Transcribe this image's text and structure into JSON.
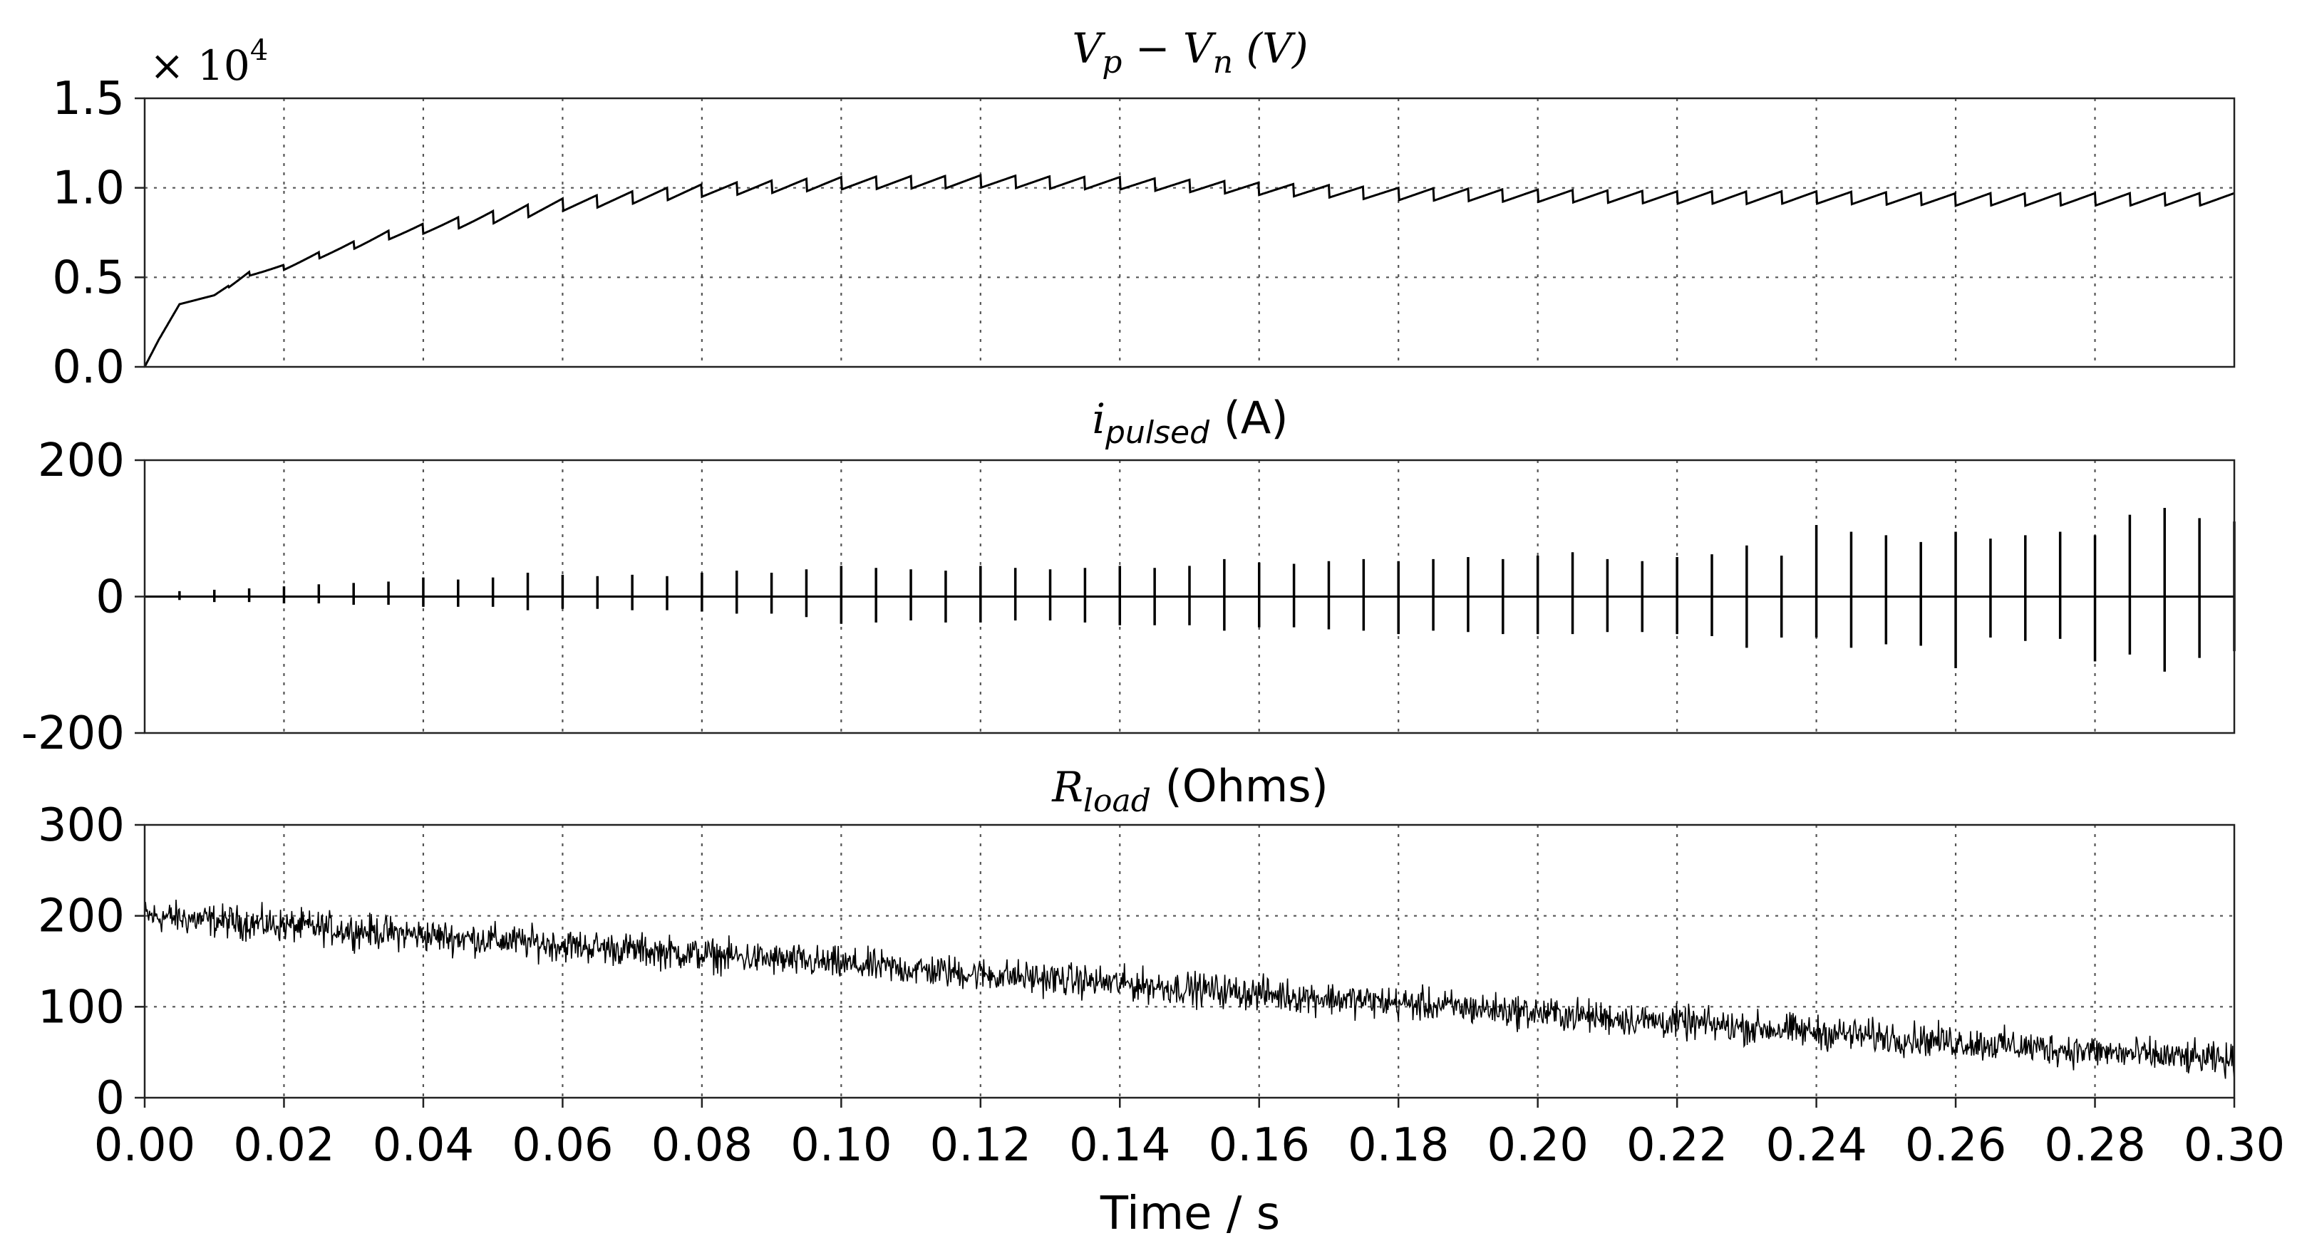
{
  "chart_data": [
    {
      "type": "line",
      "title": "V_p − V_n (V)",
      "title_parts": {
        "main1": "V",
        "sub1": "p",
        "mid": " − V",
        "sub2": "n",
        "tail": " (V)"
      },
      "multiplier_label": "× 10",
      "multiplier_exp": "4",
      "xlim": [
        0,
        0.3
      ],
      "ylim": [
        0,
        1.5
      ],
      "yticks": [
        "0.0",
        "0.5",
        "1.0",
        "1.5"
      ],
      "ytick_values": [
        0,
        0.5,
        1.0,
        1.5
      ],
      "envelope_t": [
        0,
        0.002,
        0.005,
        0.01,
        0.015,
        0.02,
        0.025,
        0.03,
        0.035,
        0.04,
        0.05,
        0.06,
        0.08,
        0.1,
        0.12,
        0.14,
        0.16,
        0.18,
        0.2,
        0.22,
        0.24,
        0.26,
        0.28,
        0.3
      ],
      "envelope_v": [
        0,
        0.15,
        0.35,
        0.4,
        0.53,
        0.57,
        0.64,
        0.7,
        0.76,
        0.8,
        0.87,
        0.94,
        1.02,
        1.06,
        1.07,
        1.06,
        1.03,
        1.0,
        0.99,
        0.98,
        0.98,
        0.97,
        0.97,
        0.97
      ],
      "sawtooth_period": 0.005,
      "drop": 0.07
    },
    {
      "type": "line",
      "title": "i_pulsed (A)",
      "title_parts": {
        "main": "i",
        "sub": "pulsed",
        "tail": " (A)"
      },
      "xlim": [
        0,
        0.3
      ],
      "ylim": [
        -200,
        200
      ],
      "yticks": [
        "-200",
        "0",
        "200"
      ],
      "ytick_values": [
        -200,
        0,
        200
      ],
      "pulse_t": [
        0.005,
        0.01,
        0.015,
        0.02,
        0.025,
        0.03,
        0.035,
        0.04,
        0.045,
        0.05,
        0.055,
        0.06,
        0.065,
        0.07,
        0.075,
        0.08,
        0.085,
        0.09,
        0.095,
        0.1,
        0.105,
        0.11,
        0.115,
        0.12,
        0.125,
        0.13,
        0.135,
        0.14,
        0.145,
        0.15,
        0.155,
        0.16,
        0.165,
        0.17,
        0.175,
        0.18,
        0.185,
        0.19,
        0.195,
        0.2,
        0.205,
        0.21,
        0.215,
        0.22,
        0.225,
        0.23,
        0.235,
        0.24,
        0.245,
        0.25,
        0.255,
        0.26,
        0.265,
        0.27,
        0.275,
        0.28,
        0.285,
        0.29,
        0.295,
        0.3
      ],
      "pulse_max": [
        8,
        10,
        12,
        15,
        18,
        20,
        22,
        28,
        25,
        28,
        35,
        32,
        30,
        32,
        30,
        35,
        38,
        35,
        40,
        45,
        42,
        40,
        38,
        45,
        42,
        40,
        42,
        45,
        42,
        45,
        55,
        50,
        48,
        52,
        55,
        52,
        55,
        58,
        55,
        60,
        65,
        55,
        52,
        58,
        62,
        75,
        60,
        105,
        95,
        90,
        80,
        95,
        85,
        90,
        95,
        90,
        120,
        130,
        115,
        110
      ],
      "pulse_min": [
        -5,
        -8,
        -8,
        -10,
        -10,
        -12,
        -12,
        -15,
        -15,
        -15,
        -20,
        -18,
        -18,
        -20,
        -20,
        -22,
        -25,
        -25,
        -30,
        -40,
        -38,
        -35,
        -38,
        -38,
        -35,
        -35,
        -38,
        -42,
        -42,
        -42,
        -50,
        -45,
        -45,
        -48,
        -50,
        -55,
        -50,
        -52,
        -55,
        -55,
        -55,
        -52,
        -52,
        -55,
        -58,
        -75,
        -60,
        -60,
        -75,
        -70,
        -72,
        -105,
        -60,
        -65,
        -62,
        -95,
        -85,
        -110,
        -90,
        -80
      ]
    },
    {
      "type": "line",
      "title": "R_load (Ohms)",
      "title_parts": {
        "main": "R",
        "sub": "load",
        "tail": " (Ohms)"
      },
      "xlim": [
        0,
        0.3
      ],
      "ylim": [
        0,
        300
      ],
      "yticks": [
        "0",
        "100",
        "200",
        "300"
      ],
      "ytick_values": [
        0,
        100,
        200,
        300
      ],
      "trend_t": [
        0,
        0.3
      ],
      "trend_v": [
        200,
        40
      ],
      "noise_amplitude": 18,
      "xticks": [
        "0.00",
        "0.02",
        "0.04",
        "0.06",
        "0.08",
        "0.10",
        "0.12",
        "0.14",
        "0.16",
        "0.18",
        "0.20",
        "0.22",
        "0.24",
        "0.26",
        "0.28",
        "0.30"
      ],
      "xlabel": "Time / s"
    }
  ]
}
